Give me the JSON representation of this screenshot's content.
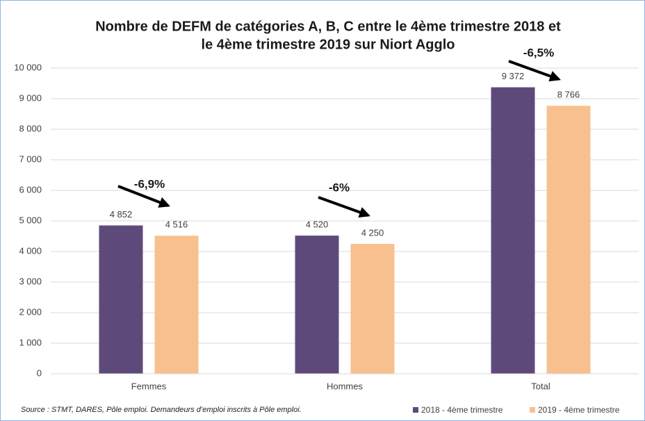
{
  "chart_data": {
    "type": "bar",
    "title_lines": [
      "Nombre de DEFM de catégories A, B, C entre le 4ème trimestre 2018 et",
      "le 4ème trimestre 2019 sur Niort Agglo"
    ],
    "categories": [
      "Femmes",
      "Hommes",
      "Total"
    ],
    "series": [
      {
        "name": "2018 - 4ème trimestre",
        "color": "#5e4a7a",
        "values": [
          4852,
          4520,
          9372
        ],
        "value_labels": [
          "4 852",
          "4 520",
          "9 372"
        ]
      },
      {
        "name": "2019 - 4ème trimestre",
        "color": "#f9c08f",
        "values": [
          4516,
          4250,
          8766
        ],
        "value_labels": [
          "4 516",
          "4 250",
          "8 766"
        ]
      }
    ],
    "ylim": [
      0,
      10000
    ],
    "yticks": [
      0,
      {
        "value": 1000,
        "label": "1 000"
      },
      {
        "value": 2000,
        "label": "2 000"
      },
      {
        "value": 3000,
        "label": "3 000"
      },
      {
        "value": 4000,
        "label": "4 000"
      },
      {
        "value": 5000,
        "label": "5 000"
      },
      {
        "value": 6000,
        "label": "6 000"
      },
      {
        "value": 7000,
        "label": "7 000"
      },
      {
        "value": 8000,
        "label": "8 000"
      },
      {
        "value": 9000,
        "label": "9 000"
      },
      {
        "value": 10000,
        "label": "10 000"
      }
    ],
    "grid": true,
    "legend": "bottom-right",
    "annotations": [
      "-6,9%",
      "-6%",
      "-6,5%"
    ],
    "source": "Source : STMT, DARES, Pôle emploi. Demandeurs d’emploi inscrits à Pôle emploi."
  }
}
